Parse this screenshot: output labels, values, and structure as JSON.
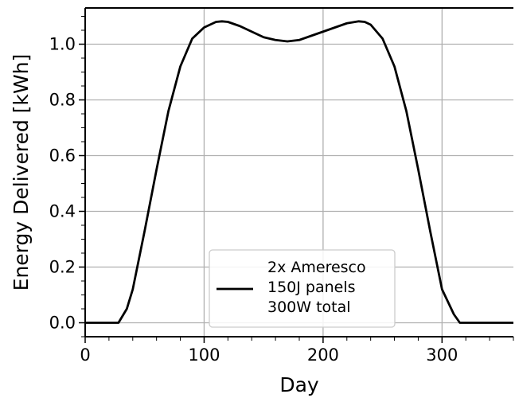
{
  "chart_data": {
    "type": "line",
    "xlabel": "Day",
    "ylabel": "Energy Delivered [kWh]",
    "xlim": [
      0,
      360
    ],
    "ylim": [
      -0.05,
      1.13
    ],
    "xticks": [
      "0",
      "100",
      "200",
      "300"
    ],
    "yticks": [
      "0.0",
      "0.2",
      "0.4",
      "0.6",
      "0.8",
      "1.0"
    ],
    "grid": true,
    "legend_position": "lower-center",
    "series": [
      {
        "name": "2x Ameresco\n150J panels\n300W total",
        "legend_lines": [
          "2x Ameresco",
          "150J panels",
          "300W total"
        ],
        "color": "#000000",
        "x": [
          0,
          10,
          20,
          28,
          35,
          40,
          50,
          60,
          70,
          80,
          90,
          100,
          110,
          115,
          120,
          130,
          140,
          150,
          160,
          170,
          180,
          190,
          200,
          210,
          220,
          230,
          235,
          240,
          250,
          260,
          270,
          280,
          290,
          300,
          310,
          315,
          320,
          330,
          340,
          350,
          360
        ],
        "y": [
          0.0,
          0.0,
          0.0,
          0.0,
          0.05,
          0.12,
          0.33,
          0.55,
          0.76,
          0.92,
          1.02,
          1.06,
          1.08,
          1.082,
          1.08,
          1.065,
          1.045,
          1.025,
          1.015,
          1.01,
          1.015,
          1.03,
          1.045,
          1.06,
          1.075,
          1.082,
          1.08,
          1.07,
          1.02,
          0.92,
          0.76,
          0.55,
          0.33,
          0.12,
          0.03,
          0.0,
          0.0,
          0.0,
          0.0,
          0.0,
          0.0
        ]
      }
    ]
  }
}
